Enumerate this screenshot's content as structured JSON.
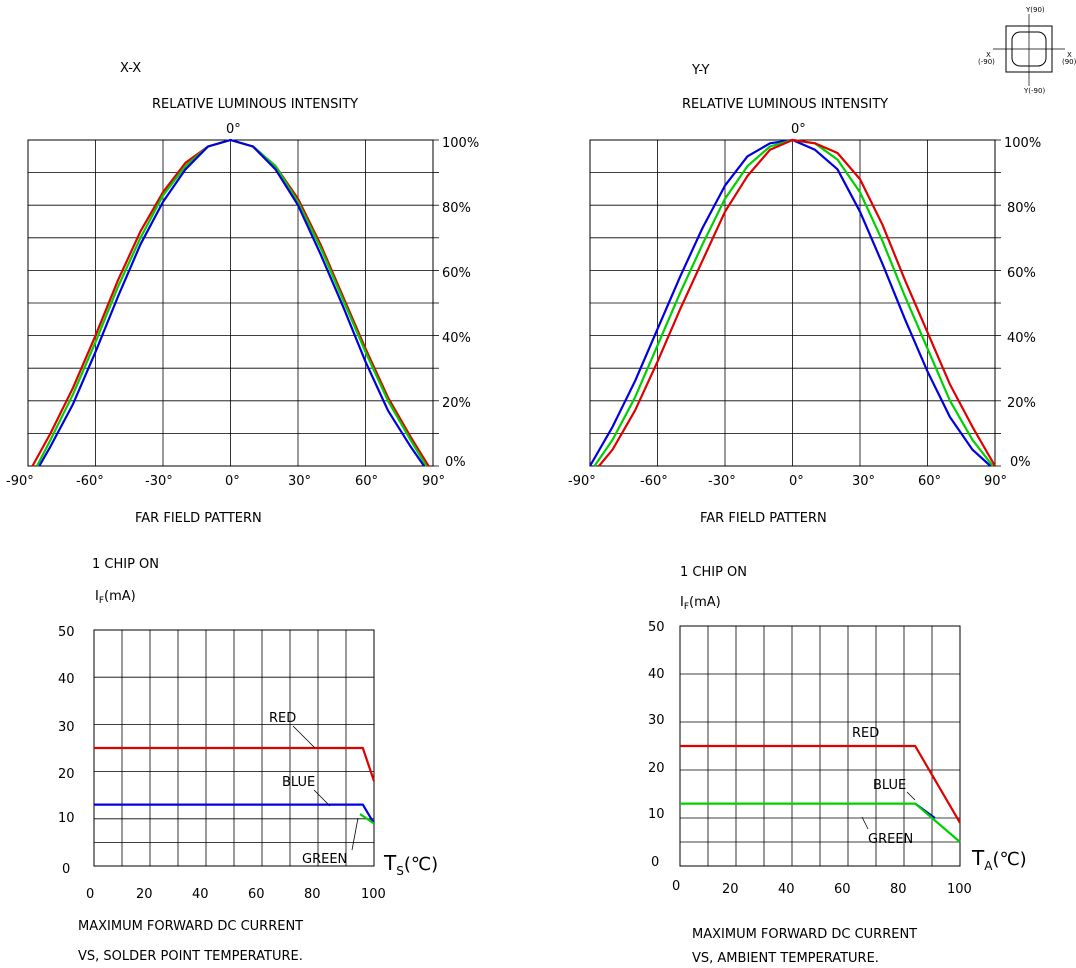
{
  "chart_data": [
    {
      "type": "line",
      "axis_name": "X-X",
      "title": "RELATIVE LUMINOUS INTENSITY",
      "xlabel": "FAR FIELD PATTERN",
      "x_ticks": [
        "-90°",
        "-60°",
        "-30°",
        "0°",
        "30°",
        "60°",
        "90°"
      ],
      "top_tick": "0°",
      "y_ticks": [
        "100%",
        "80%",
        "60%",
        "40%",
        "20%",
        "0%"
      ],
      "xlim": [
        -90,
        90
      ],
      "ylim": [
        0,
        100
      ],
      "grid": true,
      "series": [
        {
          "color": "#e00000",
          "x": [
            -88,
            -80,
            -70,
            -60,
            -50,
            -40,
            -30,
            -20,
            -10,
            0,
            10,
            20,
            30,
            40,
            50,
            60,
            70,
            80,
            88
          ],
          "y": [
            0,
            10,
            24,
            40,
            57,
            72,
            84,
            93,
            98,
            100,
            98,
            92,
            82,
            68,
            52,
            36,
            21,
            9,
            0
          ]
        },
        {
          "color": "#00d000",
          "x": [
            -86,
            -80,
            -70,
            -60,
            -50,
            -40,
            -30,
            -20,
            -10,
            0,
            10,
            20,
            30,
            40,
            50,
            60,
            70,
            80,
            87
          ],
          "y": [
            0,
            8,
            22,
            38,
            55,
            70,
            83,
            92,
            98,
            100,
            98,
            92,
            81,
            67,
            51,
            35,
            20,
            8,
            0
          ]
        },
        {
          "color": "#0000e0",
          "x": [
            -85,
            -80,
            -70,
            -60,
            -50,
            -40,
            -30,
            -20,
            -10,
            0,
            10,
            20,
            30,
            40,
            50,
            60,
            70,
            80,
            86
          ],
          "y": [
            0,
            6,
            19,
            35,
            52,
            68,
            81,
            91,
            98,
            100,
            98,
            91,
            80,
            65,
            49,
            32,
            17,
            6,
            0
          ]
        }
      ]
    },
    {
      "type": "line",
      "axis_name": "Y-Y",
      "title": "RELATIVE LUMINOUS INTENSITY",
      "xlabel": "FAR FIELD PATTERN",
      "x_ticks": [
        "-90°",
        "-60°",
        "-30°",
        "0°",
        "30°",
        "60°",
        "90°"
      ],
      "top_tick": "0°",
      "y_ticks": [
        "100%",
        "80%",
        "60%",
        "40%",
        "20%",
        "0%"
      ],
      "xlim": [
        -90,
        90
      ],
      "ylim": [
        0,
        100
      ],
      "grid": true,
      "series": [
        {
          "color": "#0000e0",
          "x": [
            -90,
            -80,
            -70,
            -60,
            -50,
            -40,
            -30,
            -20,
            -10,
            0,
            10,
            20,
            30,
            40,
            50,
            60,
            70,
            80,
            88
          ],
          "y": [
            0,
            12,
            26,
            42,
            58,
            73,
            86,
            95,
            99,
            100,
            97,
            91,
            78,
            62,
            45,
            29,
            15,
            5,
            0
          ]
        },
        {
          "color": "#00d000",
          "x": [
            -88,
            -80,
            -70,
            -60,
            -50,
            -40,
            -30,
            -20,
            -10,
            0,
            10,
            20,
            30,
            40,
            50,
            60,
            70,
            80,
            89
          ],
          "y": [
            0,
            8,
            21,
            37,
            53,
            68,
            82,
            92,
            98,
            100,
            99,
            94,
            84,
            69,
            52,
            36,
            20,
            8,
            0
          ]
        },
        {
          "color": "#e00000",
          "x": [
            -86,
            -80,
            -70,
            -60,
            -50,
            -40,
            -30,
            -20,
            -10,
            0,
            10,
            20,
            30,
            40,
            50,
            60,
            70,
            80,
            90
          ],
          "y": [
            0,
            5,
            17,
            32,
            48,
            63,
            78,
            89,
            97,
            100,
            99,
            96,
            88,
            74,
            57,
            41,
            25,
            12,
            0
          ]
        }
      ]
    },
    {
      "type": "line",
      "pre_title": "1 CHIP ON",
      "ylabel": "I",
      "ylabel_sub": "F",
      "ylabel_unit": "(mA)",
      "xlabel": "T",
      "xlabel_sub": "S",
      "xlabel_unit": "(℃)",
      "caption_line1": "MAXIMUM FORWARD DC CURRENT",
      "caption_line2": "VS, SOLDER POINT TEMPERATURE.",
      "x_ticks": [
        "0",
        "20",
        "40",
        "60",
        "80",
        "100"
      ],
      "y_ticks": [
        "50",
        "40",
        "30",
        "20",
        "10",
        "0"
      ],
      "xlim": [
        0,
        100
      ],
      "ylim": [
        0,
        50
      ],
      "grid": true,
      "series": [
        {
          "name": "RED",
          "color": "#e00000",
          "x": [
            0,
            96,
            100
          ],
          "y": [
            25,
            25,
            18
          ]
        },
        {
          "name": "BLUE",
          "color": "#0000e0",
          "x": [
            0,
            96,
            100
          ],
          "y": [
            13,
            13,
            9
          ]
        },
        {
          "name": "GREEN",
          "color": "#00d000",
          "x": [
            95,
            100
          ],
          "y": [
            11,
            9
          ]
        }
      ]
    },
    {
      "type": "line",
      "pre_title": "1 CHIP ON",
      "ylabel": "I",
      "ylabel_sub": "F",
      "ylabel_unit": "(mA)",
      "xlabel": "T",
      "xlabel_sub": "A",
      "xlabel_unit": "(℃)",
      "caption_line1": "MAXIMUM FORWARD DC CURRENT",
      "caption_line2": "VS, AMBIENT TEMPERATURE.",
      "x_ticks": [
        "0",
        "20",
        "40",
        "60",
        "80",
        "100"
      ],
      "y_ticks": [
        "50",
        "40",
        "30",
        "20",
        "10",
        "0"
      ],
      "xlim": [
        0,
        100
      ],
      "ylim": [
        0,
        50
      ],
      "grid": true,
      "series": [
        {
          "name": "RED",
          "color": "#e00000",
          "x": [
            0,
            84,
            100
          ],
          "y": [
            25,
            25,
            9
          ]
        },
        {
          "name": "BLUE",
          "color": "#0000e0",
          "x": [
            84,
            91
          ],
          "y": [
            13,
            10
          ]
        },
        {
          "name": "GREEN",
          "color": "#00d000",
          "x": [
            0,
            84,
            100
          ],
          "y": [
            13,
            13,
            5
          ]
        }
      ]
    }
  ],
  "orientation_icon": {
    "top": "Y(90)",
    "left_top": "X",
    "left_bottom": "(-90)",
    "right_top": "X",
    "right_bottom": "(90)",
    "bottom": "Y(-90)"
  }
}
